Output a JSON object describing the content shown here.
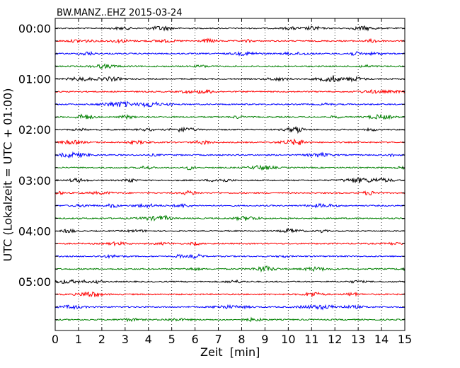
{
  "chart_data": {
    "type": "line",
    "title": "BW.MANZ..EHZ 2015-03-24",
    "xlabel": "Zeit  [min]",
    "ylabel": "UTC (Lokalzeit = UTC + 01:00)",
    "xlim": [
      0,
      15
    ],
    "x_ticks": [
      "0",
      "1",
      "2",
      "3",
      "4",
      "5",
      "6",
      "7",
      "8",
      "9",
      "10",
      "11",
      "12",
      "13",
      "14",
      "15"
    ],
    "y_tick_labels": [
      "00:00",
      "01:00",
      "02:00",
      "03:00",
      "04:00",
      "05:00"
    ],
    "grid": "vertical dotted",
    "trace_colors": [
      "#000000",
      "#ff0000",
      "#0000ff",
      "#008000"
    ],
    "traces": [
      {
        "start": "00:00"
      },
      {
        "start": "00:15"
      },
      {
        "start": "00:30"
      },
      {
        "start": "00:45"
      },
      {
        "start": "01:00"
      },
      {
        "start": "01:15"
      },
      {
        "start": "01:30"
      },
      {
        "start": "01:45"
      },
      {
        "start": "02:00"
      },
      {
        "start": "02:15"
      },
      {
        "start": "02:30"
      },
      {
        "start": "02:45"
      },
      {
        "start": "03:00"
      },
      {
        "start": "03:15"
      },
      {
        "start": "03:30"
      },
      {
        "start": "03:45"
      },
      {
        "start": "04:00"
      },
      {
        "start": "04:15"
      },
      {
        "start": "04:30"
      },
      {
        "start": "04:45"
      },
      {
        "start": "05:00"
      },
      {
        "start": "05:15"
      },
      {
        "start": "05:30"
      },
      {
        "start": "05:45"
      }
    ]
  }
}
